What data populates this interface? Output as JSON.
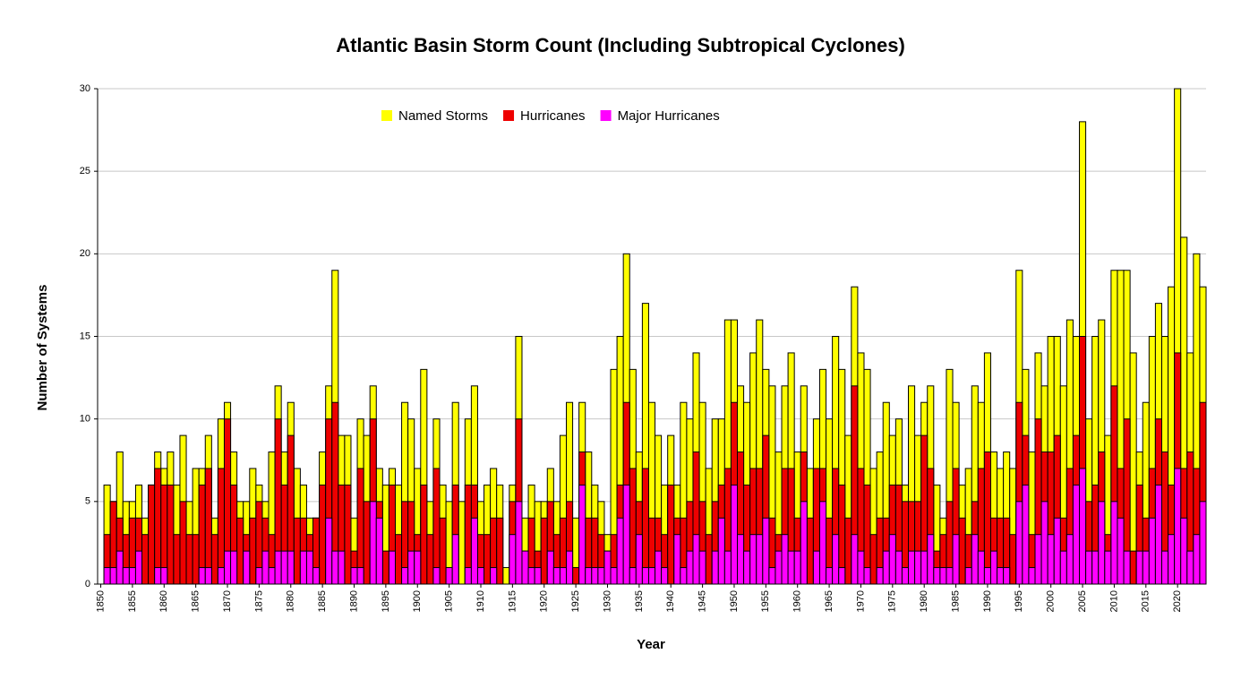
{
  "chart_data": {
    "type": "bar",
    "title": "Atlantic Basin Storm Count (Including Subtropical Cyclones)",
    "xlabel": "Year",
    "ylabel": "Number of Systems",
    "x": [
      1851,
      1852,
      1853,
      1854,
      1855,
      1856,
      1857,
      1858,
      1859,
      1860,
      1861,
      1862,
      1863,
      1864,
      1865,
      1866,
      1867,
      1868,
      1869,
      1870,
      1871,
      1872,
      1873,
      1874,
      1875,
      1876,
      1877,
      1878,
      1879,
      1880,
      1881,
      1882,
      1883,
      1884,
      1885,
      1886,
      1887,
      1888,
      1889,
      1890,
      1891,
      1892,
      1893,
      1894,
      1895,
      1896,
      1897,
      1898,
      1899,
      1900,
      1901,
      1902,
      1903,
      1904,
      1905,
      1906,
      1907,
      1908,
      1909,
      1910,
      1911,
      1912,
      1913,
      1914,
      1915,
      1916,
      1917,
      1918,
      1919,
      1920,
      1921,
      1922,
      1923,
      1924,
      1925,
      1926,
      1927,
      1928,
      1929,
      1930,
      1931,
      1932,
      1933,
      1934,
      1935,
      1936,
      1937,
      1938,
      1939,
      1940,
      1941,
      1942,
      1943,
      1944,
      1945,
      1946,
      1947,
      1948,
      1949,
      1950,
      1951,
      1952,
      1953,
      1954,
      1955,
      1956,
      1957,
      1958,
      1959,
      1960,
      1961,
      1962,
      1963,
      1964,
      1965,
      1966,
      1967,
      1968,
      1969,
      1970,
      1971,
      1972,
      1973,
      1974,
      1975,
      1976,
      1977,
      1978,
      1979,
      1980,
      1981,
      1982,
      1983,
      1984,
      1985,
      1986,
      1987,
      1988,
      1989,
      1990,
      1991,
      1992,
      1993,
      1994,
      1995,
      1996,
      1997,
      1998,
      1999,
      2000,
      2001,
      2002,
      2003,
      2004,
      2005,
      2006,
      2007,
      2008,
      2009,
      2010,
      2011,
      2012,
      2013,
      2014,
      2015,
      2016,
      2017,
      2018,
      2019,
      2020,
      2021,
      2022,
      2023,
      2024
    ],
    "series": [
      {
        "name": "Named Storms",
        "color": "#ffff00",
        "values": [
          6,
          5,
          8,
          5,
          5,
          6,
          4,
          6,
          8,
          7,
          8,
          6,
          9,
          5,
          7,
          7,
          9,
          4,
          10,
          11,
          8,
          5,
          5,
          7,
          6,
          5,
          8,
          12,
          8,
          11,
          7,
          6,
          4,
          4,
          8,
          12,
          19,
          9,
          9,
          4,
          10,
          9,
          12,
          7,
          6,
          7,
          6,
          11,
          10,
          7,
          13,
          5,
          10,
          6,
          5,
          11,
          5,
          10,
          12,
          5,
          6,
          7,
          6,
          1,
          6,
          15,
          4,
          6,
          5,
          5,
          7,
          5,
          9,
          11,
          4,
          11,
          8,
          6,
          5,
          3,
          13,
          15,
          20,
          13,
          8,
          17,
          11,
          9,
          6,
          9,
          6,
          11,
          10,
          14,
          11,
          7,
          10,
          10,
          16,
          16,
          12,
          11,
          14,
          16,
          13,
          12,
          8,
          12,
          14,
          8,
          12,
          7,
          10,
          13,
          10,
          15,
          13,
          9,
          18,
          14,
          13,
          7,
          8,
          11,
          9,
          10,
          6,
          12,
          9,
          11,
          12,
          6,
          4,
          13,
          11,
          6,
          7,
          12,
          11,
          14,
          8,
          7,
          8,
          7,
          19,
          13,
          8,
          14,
          12,
          15,
          15,
          12,
          16,
          15,
          28,
          10,
          15,
          16,
          9,
          19,
          19,
          19,
          14,
          8,
          11,
          15,
          17,
          15,
          18,
          30,
          21,
          14,
          20,
          18
        ]
      },
      {
        "name": "Hurricanes",
        "color": "#ee0000",
        "values": [
          3,
          5,
          4,
          3,
          4,
          4,
          3,
          6,
          7,
          6,
          6,
          3,
          5,
          3,
          3,
          6,
          7,
          3,
          7,
          10,
          6,
          4,
          3,
          4,
          5,
          4,
          3,
          10,
          6,
          9,
          4,
          4,
          3,
          4,
          6,
          10,
          11,
          6,
          6,
          2,
          7,
          5,
          10,
          5,
          2,
          6,
          3,
          5,
          5,
          3,
          6,
          3,
          7,
          4,
          1,
          6,
          0,
          6,
          6,
          3,
          3,
          4,
          4,
          0,
          5,
          10,
          2,
          4,
          2,
          4,
          5,
          3,
          4,
          5,
          1,
          8,
          4,
          4,
          3,
          2,
          3,
          6,
          11,
          7,
          5,
          7,
          4,
          4,
          3,
          6,
          4,
          4,
          5,
          8,
          5,
          3,
          5,
          6,
          7,
          11,
          8,
          6,
          7,
          7,
          9,
          4,
          3,
          7,
          7,
          4,
          8,
          4,
          7,
          7,
          4,
          7,
          6,
          4,
          12,
          7,
          6,
          3,
          4,
          4,
          6,
          6,
          5,
          5,
          5,
          9,
          7,
          2,
          3,
          5,
          7,
          4,
          3,
          5,
          7,
          8,
          4,
          4,
          4,
          3,
          11,
          9,
          3,
          10,
          8,
          8,
          9,
          4,
          7,
          9,
          15,
          5,
          6,
          8,
          3,
          12,
          7,
          10,
          2,
          6,
          4,
          7,
          10,
          8,
          6,
          14,
          7,
          8,
          7,
          11
        ]
      },
      {
        "name": "Major Hurricanes",
        "color": "#ff00ff",
        "values": [
          1,
          1,
          2,
          1,
          1,
          2,
          0,
          0,
          1,
          1,
          0,
          0,
          0,
          0,
          0,
          1,
          1,
          0,
          1,
          2,
          2,
          0,
          2,
          0,
          1,
          2,
          1,
          2,
          2,
          2,
          0,
          2,
          2,
          1,
          0,
          4,
          2,
          2,
          0,
          1,
          1,
          0,
          5,
          4,
          0,
          2,
          0,
          1,
          2,
          2,
          0,
          0,
          1,
          0,
          1,
          3,
          0,
          1,
          4,
          1,
          0,
          1,
          0,
          0,
          3,
          5,
          2,
          1,
          1,
          0,
          2,
          1,
          1,
          2,
          0,
          6,
          1,
          1,
          1,
          2,
          1,
          4,
          6,
          1,
          3,
          1,
          1,
          2,
          1,
          0,
          3,
          1,
          2,
          3,
          2,
          0,
          2,
          4,
          2,
          6,
          3,
          2,
          3,
          3,
          4,
          1,
          2,
          3,
          2,
          2,
          5,
          0,
          2,
          5,
          1,
          3,
          1,
          0,
          3,
          2,
          1,
          0,
          1,
          2,
          3,
          2,
          1,
          2,
          2,
          2,
          3,
          1,
          1,
          1,
          3,
          0,
          1,
          3,
          2,
          1,
          2,
          1,
          1,
          0,
          5,
          6,
          1,
          3,
          5,
          3,
          4,
          2,
          3,
          6,
          7,
          2,
          2,
          5,
          2,
          5,
          4,
          2,
          0,
          2,
          2,
          4,
          6,
          2,
          3,
          7,
          4,
          2,
          3,
          5
        ]
      }
    ],
    "xlim": [
      1849.5,
      2024.5
    ],
    "xticks": [
      1850,
      1855,
      1860,
      1865,
      1870,
      1875,
      1880,
      1885,
      1890,
      1895,
      1900,
      1905,
      1910,
      1915,
      1920,
      1925,
      1930,
      1935,
      1940,
      1945,
      1950,
      1955,
      1960,
      1965,
      1970,
      1975,
      1980,
      1985,
      1990,
      1995,
      2000,
      2005,
      2010,
      2015,
      2020
    ],
    "ylim": [
      0,
      30
    ],
    "yticks": [
      0,
      5,
      10,
      15,
      20,
      25,
      30
    ],
    "grid": true
  }
}
